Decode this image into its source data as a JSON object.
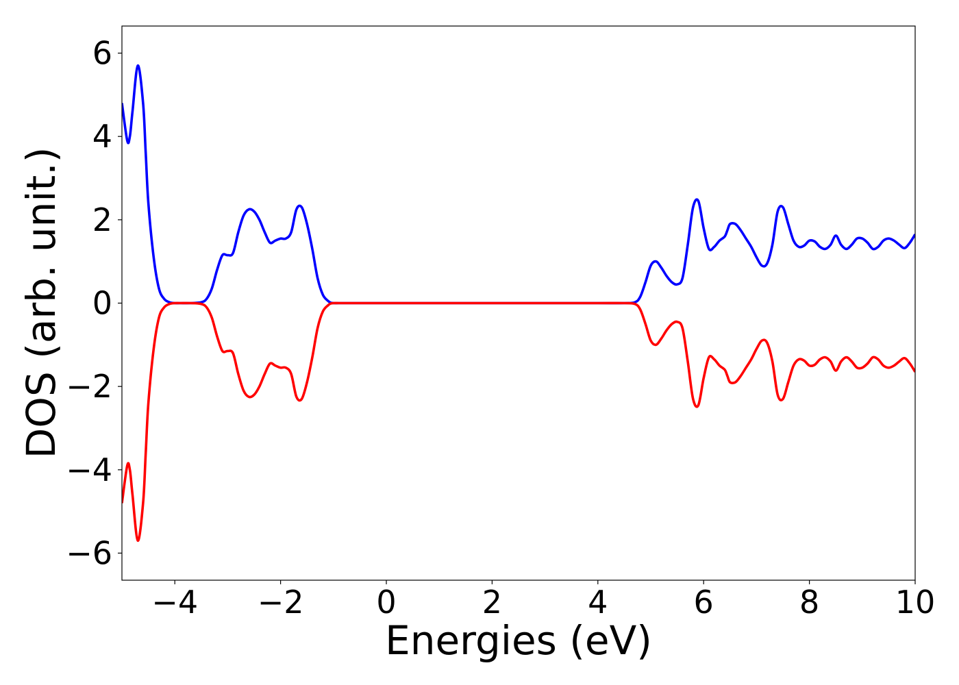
{
  "chart_data": {
    "type": "line",
    "title": "",
    "xlabel": "Energies (eV)",
    "ylabel": "DOS (arb. unit.)",
    "xlim": [
      -5,
      10
    ],
    "ylim": [
      -6.65,
      6.65
    ],
    "xticks": [
      -4,
      -2,
      0,
      2,
      4,
      6,
      8,
      10
    ],
    "xtick_labels": [
      "−4",
      "−2",
      "0",
      "2",
      "4",
      "6",
      "8",
      "10"
    ],
    "yticks": [
      6,
      4,
      2,
      0,
      -2,
      -4,
      -6
    ],
    "ytick_labels": [
      "6",
      "4",
      "2",
      "0",
      "−2",
      "−4",
      "−6"
    ],
    "grid": false,
    "legend": "none",
    "series": [
      {
        "color": "#0000ff",
        "x": [
          -5.0,
          -4.9,
          -4.85,
          -4.8,
          -4.7,
          -4.6,
          -4.55,
          -4.5,
          -4.4,
          -4.3,
          -4.2,
          -4.1,
          -4.0,
          -3.9,
          -3.7,
          -3.5,
          -3.4,
          -3.3,
          -3.2,
          -3.1,
          -3.0,
          -2.9,
          -2.8,
          -2.7,
          -2.6,
          -2.5,
          -2.4,
          -2.3,
          -2.2,
          -2.1,
          -2.0,
          -1.9,
          -1.8,
          -1.7,
          -1.6,
          -1.5,
          -1.4,
          -1.3,
          -1.2,
          -1.1,
          -1.05,
          -1.0,
          -0.9,
          -0.8,
          -0.7,
          -0.6,
          -0.5,
          -0.4,
          0.0,
          1.0,
          2.0,
          3.0,
          4.0,
          4.5,
          4.7,
          4.8,
          4.9,
          5.0,
          5.1,
          5.2,
          5.3,
          5.4,
          5.5,
          5.6,
          5.7,
          5.8,
          5.9,
          6.0,
          6.1,
          6.2,
          6.3,
          6.4,
          6.45,
          6.5,
          6.6,
          6.7,
          6.8,
          6.9,
          7.0,
          7.1,
          7.2,
          7.3,
          7.4,
          7.5,
          7.6,
          7.7,
          7.8,
          7.9,
          8.0,
          8.1,
          8.2,
          8.3,
          8.4,
          8.5,
          8.6,
          8.7,
          8.8,
          8.9,
          9.0,
          9.1,
          9.2,
          9.3,
          9.4,
          9.5,
          9.6,
          9.7,
          9.8,
          9.9,
          10.0
        ],
        "y": [
          4.8,
          3.9,
          4.0,
          4.6,
          5.7,
          4.8,
          3.6,
          2.4,
          1.1,
          0.35,
          0.1,
          0.02,
          0.0,
          0.0,
          0.0,
          0.02,
          0.1,
          0.35,
          0.8,
          1.15,
          1.15,
          1.2,
          1.7,
          2.1,
          2.25,
          2.2,
          2.0,
          1.7,
          1.45,
          1.5,
          1.55,
          1.55,
          1.7,
          2.25,
          2.3,
          1.9,
          1.3,
          0.6,
          0.2,
          0.05,
          0.01,
          0.0,
          0.0,
          0.0,
          0.0,
          0.0,
          0.0,
          0.0,
          0.0,
          0.0,
          0.0,
          0.0,
          0.0,
          0.0,
          0.02,
          0.15,
          0.5,
          0.9,
          1.0,
          0.85,
          0.65,
          0.5,
          0.45,
          0.6,
          1.4,
          2.3,
          2.45,
          1.8,
          1.3,
          1.35,
          1.5,
          1.6,
          1.75,
          1.9,
          1.9,
          1.75,
          1.55,
          1.35,
          1.1,
          0.9,
          0.95,
          1.4,
          2.2,
          2.3,
          1.9,
          1.5,
          1.35,
          1.38,
          1.5,
          1.48,
          1.35,
          1.3,
          1.4,
          1.62,
          1.4,
          1.3,
          1.4,
          1.55,
          1.55,
          1.45,
          1.3,
          1.35,
          1.5,
          1.55,
          1.5,
          1.4,
          1.32,
          1.45,
          1.65
        ]
      },
      {
        "color": "#ff0000",
        "x": [
          -5.0,
          -4.9,
          -4.85,
          -4.8,
          -4.7,
          -4.6,
          -4.55,
          -4.5,
          -4.4,
          -4.3,
          -4.2,
          -4.1,
          -4.0,
          -3.9,
          -3.7,
          -3.5,
          -3.4,
          -3.3,
          -3.2,
          -3.1,
          -3.0,
          -2.9,
          -2.8,
          -2.7,
          -2.6,
          -2.5,
          -2.4,
          -2.3,
          -2.2,
          -2.1,
          -2.0,
          -1.9,
          -1.8,
          -1.7,
          -1.6,
          -1.5,
          -1.4,
          -1.3,
          -1.2,
          -1.1,
          -1.05,
          -1.0,
          -0.9,
          -0.8,
          -0.7,
          -0.6,
          -0.5,
          -0.4,
          0.0,
          1.0,
          2.0,
          3.0,
          4.0,
          4.5,
          4.7,
          4.8,
          4.9,
          5.0,
          5.1,
          5.2,
          5.3,
          5.4,
          5.5,
          5.6,
          5.7,
          5.8,
          5.9,
          6.0,
          6.1,
          6.2,
          6.3,
          6.4,
          6.45,
          6.5,
          6.6,
          6.7,
          6.8,
          6.9,
          7.0,
          7.1,
          7.2,
          7.3,
          7.4,
          7.5,
          7.6,
          7.7,
          7.8,
          7.9,
          8.0,
          8.1,
          8.2,
          8.3,
          8.4,
          8.5,
          8.6,
          8.7,
          8.8,
          8.9,
          9.0,
          9.1,
          9.2,
          9.3,
          9.4,
          9.5,
          9.6,
          9.7,
          9.8,
          9.9,
          10.0
        ],
        "y": [
          -4.8,
          -3.9,
          -4.0,
          -4.6,
          -5.7,
          -4.8,
          -3.6,
          -2.4,
          -1.1,
          -0.35,
          -0.1,
          -0.02,
          0.0,
          0.0,
          0.0,
          -0.02,
          -0.1,
          -0.35,
          -0.8,
          -1.15,
          -1.15,
          -1.2,
          -1.7,
          -2.1,
          -2.25,
          -2.2,
          -2.0,
          -1.7,
          -1.45,
          -1.5,
          -1.55,
          -1.55,
          -1.7,
          -2.25,
          -2.3,
          -1.9,
          -1.3,
          -0.6,
          -0.2,
          -0.05,
          -0.01,
          0.0,
          0.0,
          0.0,
          0.0,
          0.0,
          0.0,
          0.0,
          0.0,
          0.0,
          0.0,
          0.0,
          0.0,
          0.0,
          -0.02,
          -0.15,
          -0.5,
          -0.9,
          -1.0,
          -0.85,
          -0.65,
          -0.5,
          -0.45,
          -0.6,
          -1.4,
          -2.3,
          -2.45,
          -1.8,
          -1.3,
          -1.35,
          -1.5,
          -1.6,
          -1.75,
          -1.9,
          -1.9,
          -1.75,
          -1.55,
          -1.35,
          -1.1,
          -0.9,
          -0.95,
          -1.4,
          -2.2,
          -2.3,
          -1.9,
          -1.5,
          -1.35,
          -1.38,
          -1.5,
          -1.48,
          -1.35,
          -1.3,
          -1.4,
          -1.62,
          -1.4,
          -1.3,
          -1.4,
          -1.55,
          -1.55,
          -1.45,
          -1.3,
          -1.35,
          -1.5,
          -1.55,
          -1.5,
          -1.4,
          -1.32,
          -1.45,
          -1.65
        ]
      }
    ]
  }
}
